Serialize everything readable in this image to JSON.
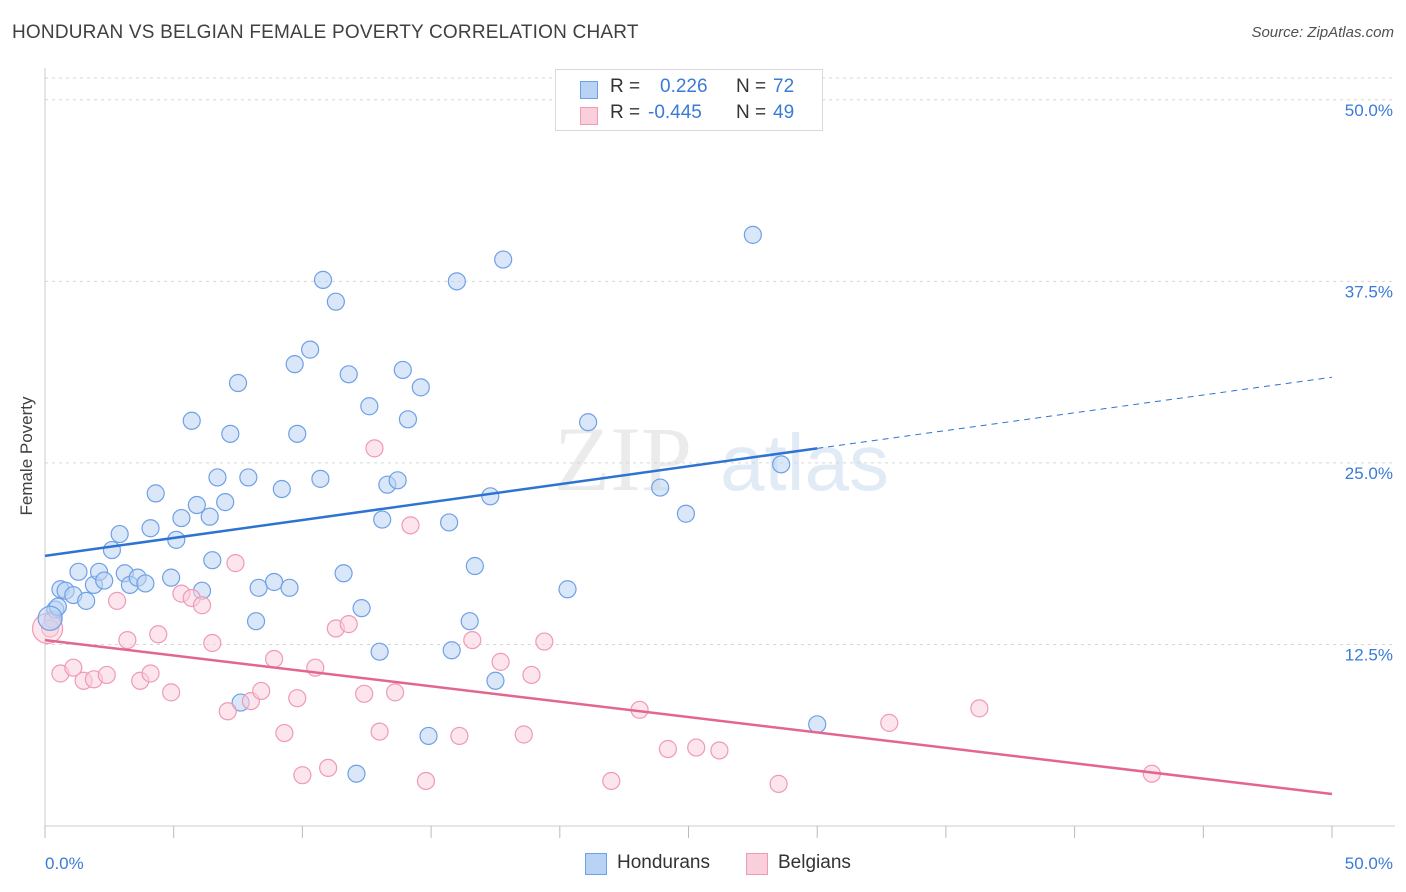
{
  "title": "HONDURAN VS BELGIAN FEMALE POVERTY CORRELATION CHART",
  "source": "Source: ZipAtlas.com",
  "watermark": {
    "left": "ZIP",
    "right": "atlas"
  },
  "legend": {
    "rows": [
      {
        "r_label": "R =",
        "r_value": "0.226",
        "n_label": "N =",
        "n_value": "72"
      },
      {
        "r_label": "R =",
        "r_value": "-0.445",
        "n_label": "N =",
        "n_value": "49"
      }
    ]
  },
  "chart_data": {
    "type": "scatter",
    "title": "HONDURAN VS BELGIAN FEMALE POVERTY CORRELATION CHART",
    "xlabel": "",
    "ylabel": "Female Poverty",
    "xlim": [
      0,
      50
    ],
    "ylim": [
      0,
      51.5
    ],
    "x_tick_labels": [
      "0.0%",
      "50.0%"
    ],
    "y_ticks": [
      12.5,
      25.0,
      37.5,
      50.0
    ],
    "y_tick_labels": [
      "12.5%",
      "25.0%",
      "37.5%",
      "50.0%"
    ],
    "grid": true,
    "legend_position": "bottom-center",
    "series": [
      {
        "name": "Hondurans",
        "color": "#6fa0e6",
        "fill": "#b9d3f4",
        "line_color": "#2e73d1",
        "r": 0.226,
        "n": 72,
        "trend": {
          "x": [
            0,
            30
          ],
          "y": [
            18.6,
            26.0
          ]
        },
        "trend_extension": {
          "x": [
            30,
            50
          ],
          "y": [
            26.0,
            30.9
          ]
        },
        "points": [
          [
            0.3,
            14.2
          ],
          [
            0.4,
            14.9
          ],
          [
            0.6,
            16.3
          ],
          [
            0.8,
            16.2
          ],
          [
            1.1,
            15.9
          ],
          [
            1.3,
            17.5
          ],
          [
            1.6,
            15.5
          ],
          [
            1.9,
            16.6
          ],
          [
            2.1,
            17.5
          ],
          [
            2.3,
            16.9
          ],
          [
            2.6,
            19.0
          ],
          [
            2.9,
            20.1
          ],
          [
            3.1,
            17.4
          ],
          [
            3.3,
            16.6
          ],
          [
            3.6,
            17.1
          ],
          [
            3.9,
            16.7
          ],
          [
            4.1,
            20.5
          ],
          [
            4.3,
            22.9
          ],
          [
            4.9,
            17.1
          ],
          [
            5.1,
            19.7
          ],
          [
            5.3,
            21.2
          ],
          [
            5.7,
            27.9
          ],
          [
            5.9,
            22.1
          ],
          [
            6.1,
            16.2
          ],
          [
            6.4,
            21.3
          ],
          [
            6.5,
            18.3
          ],
          [
            6.7,
            24.0
          ],
          [
            7.0,
            22.3
          ],
          [
            7.2,
            27.0
          ],
          [
            7.5,
            30.5
          ],
          [
            7.6,
            8.5
          ],
          [
            7.9,
            24.0
          ],
          [
            8.2,
            14.1
          ],
          [
            8.3,
            16.4
          ],
          [
            8.9,
            16.8
          ],
          [
            9.2,
            23.2
          ],
          [
            9.5,
            16.4
          ],
          [
            9.7,
            31.8
          ],
          [
            9.8,
            27.0
          ],
          [
            10.3,
            32.8
          ],
          [
            10.7,
            23.9
          ],
          [
            10.8,
            37.6
          ],
          [
            11.3,
            36.1
          ],
          [
            11.6,
            17.4
          ],
          [
            11.8,
            31.1
          ],
          [
            12.3,
            15.0
          ],
          [
            12.6,
            28.9
          ],
          [
            13.0,
            12.0
          ],
          [
            13.1,
            21.1
          ],
          [
            13.3,
            23.5
          ],
          [
            13.7,
            23.8
          ],
          [
            13.9,
            31.4
          ],
          [
            14.1,
            28.0
          ],
          [
            14.6,
            30.2
          ],
          [
            14.9,
            6.2
          ],
          [
            15.7,
            20.9
          ],
          [
            15.8,
            12.1
          ],
          [
            16.0,
            37.5
          ],
          [
            16.5,
            14.1
          ],
          [
            16.7,
            17.9
          ],
          [
            17.3,
            22.7
          ],
          [
            17.5,
            10.0
          ],
          [
            17.8,
            39.0
          ],
          [
            20.3,
            16.3
          ],
          [
            21.1,
            27.8
          ],
          [
            23.9,
            23.3
          ],
          [
            24.9,
            21.5
          ],
          [
            27.5,
            40.7
          ],
          [
            28.6,
            24.9
          ],
          [
            30.0,
            7.0
          ],
          [
            12.1,
            3.6
          ],
          [
            0.5,
            15.1
          ]
        ]
      },
      {
        "name": "Belgians",
        "color": "#ef9ab6",
        "fill": "#f9cfdc",
        "line_color": "#e3668f",
        "r": -0.445,
        "n": 49,
        "trend": {
          "x": [
            0,
            50
          ],
          "y": [
            12.8,
            2.2
          ]
        },
        "points": [
          [
            0.2,
            13.6
          ],
          [
            0.6,
            10.5
          ],
          [
            1.1,
            10.9
          ],
          [
            1.5,
            10.0
          ],
          [
            1.9,
            10.1
          ],
          [
            2.4,
            10.4
          ],
          [
            2.8,
            15.5
          ],
          [
            3.2,
            12.8
          ],
          [
            3.7,
            10.0
          ],
          [
            4.1,
            10.5
          ],
          [
            4.4,
            13.2
          ],
          [
            4.9,
            9.2
          ],
          [
            5.3,
            16.0
          ],
          [
            5.7,
            15.7
          ],
          [
            6.1,
            15.2
          ],
          [
            6.5,
            12.6
          ],
          [
            7.1,
            7.9
          ],
          [
            7.4,
            18.1
          ],
          [
            8.0,
            8.6
          ],
          [
            8.4,
            9.3
          ],
          [
            8.9,
            11.5
          ],
          [
            9.3,
            6.4
          ],
          [
            9.8,
            8.8
          ],
          [
            10.0,
            3.5
          ],
          [
            10.5,
            10.9
          ],
          [
            11.0,
            4.0
          ],
          [
            11.3,
            13.6
          ],
          [
            11.8,
            13.9
          ],
          [
            12.4,
            9.1
          ],
          [
            12.8,
            26.0
          ],
          [
            13.0,
            6.5
          ],
          [
            13.6,
            9.2
          ],
          [
            14.2,
            20.7
          ],
          [
            14.8,
            3.1
          ],
          [
            16.1,
            6.2
          ],
          [
            16.6,
            12.8
          ],
          [
            17.7,
            11.3
          ],
          [
            18.6,
            6.3
          ],
          [
            18.9,
            10.4
          ],
          [
            19.4,
            12.7
          ],
          [
            22.0,
            3.1
          ],
          [
            23.1,
            8.0
          ],
          [
            24.2,
            5.3
          ],
          [
            25.3,
            5.4
          ],
          [
            26.2,
            5.2
          ],
          [
            28.5,
            2.9
          ],
          [
            32.8,
            7.1
          ],
          [
            36.3,
            8.1
          ],
          [
            43.0,
            3.6
          ]
        ]
      }
    ]
  }
}
